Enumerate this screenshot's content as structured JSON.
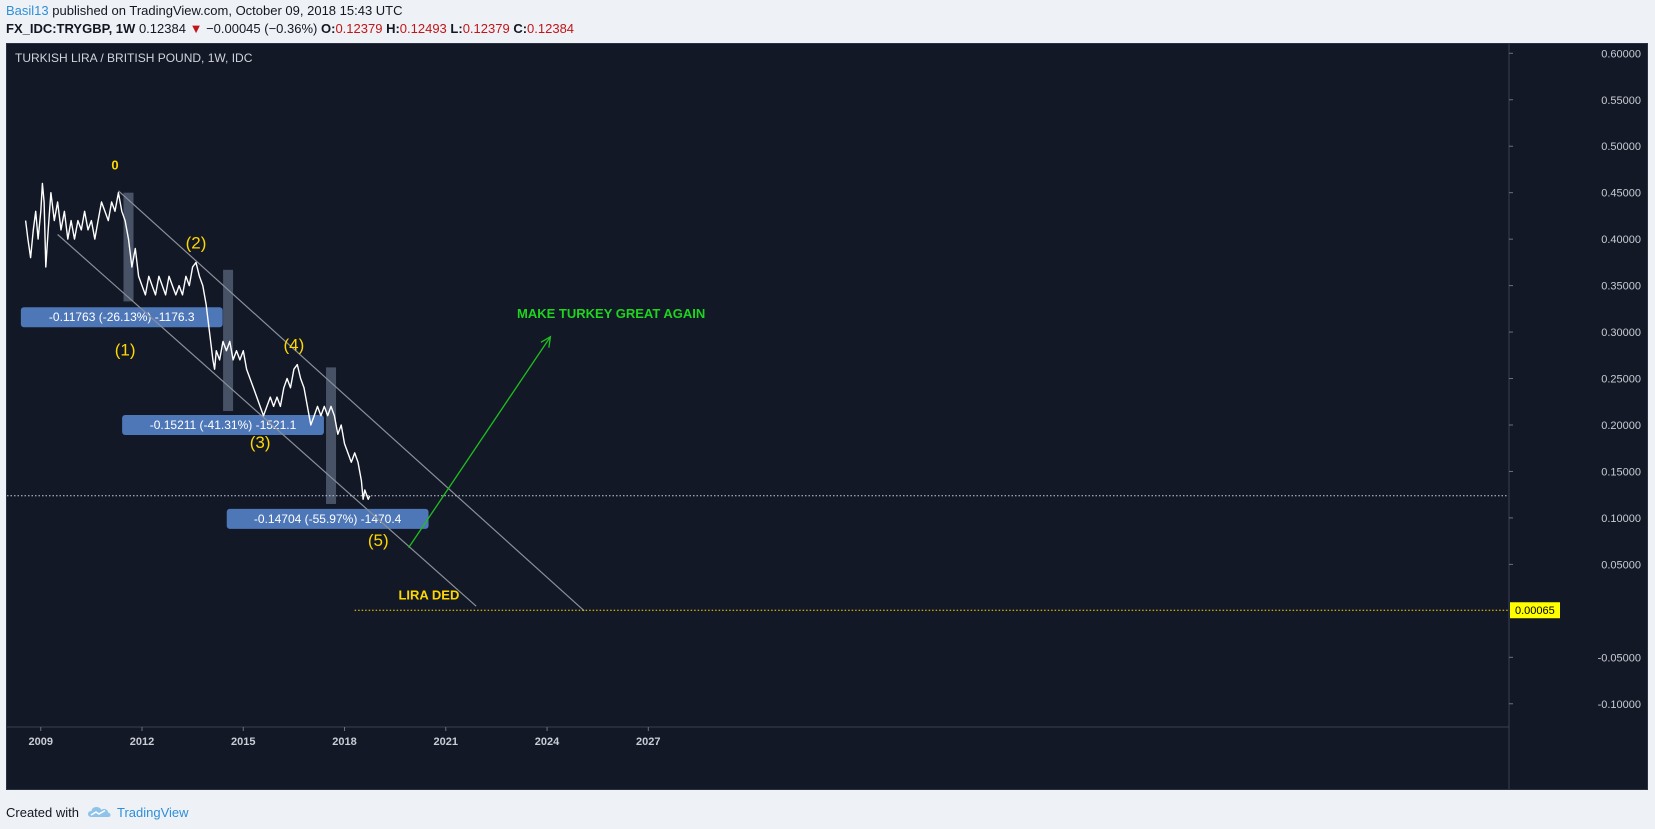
{
  "header": {
    "author": "Basil13",
    "published": " published on TradingView.com, October 09, 2018 15:43 UTC",
    "symbol": "FX_IDC:TRYGBP",
    "interval": ", 1W",
    "last": "0.12384",
    "down_arrow": "▼",
    "change": "−0.00045 (−0.36%)",
    "o_label": "O:",
    "o_value": "0.12379",
    "h_label": "H:",
    "h_value": "0.12493",
    "l_label": "L:",
    "l_value": "0.12379",
    "c_label": "C:",
    "c_value": "0.12384"
  },
  "footer": {
    "created_with": "Created with",
    "tradingview": "TradingView",
    "logo_icon": "tradingview-cloud-icon"
  },
  "chart_data": {
    "type": "line",
    "title": "TURKISH LIRA / BRITISH POUND, 1W, IDC",
    "xlabel": "",
    "ylabel": "",
    "x_ticks": [
      "2009",
      "2012",
      "2015",
      "2018",
      "2021",
      "2024",
      "2027"
    ],
    "y_ticks": [
      "0.60000",
      "0.55000",
      "0.50000",
      "0.45000",
      "0.40000",
      "0.35000",
      "0.30000",
      "0.25000",
      "0.20000",
      "0.15000",
      "0.10000",
      "0.05000",
      "-0.05000",
      "-0.10000"
    ],
    "ylim": [
      -0.125,
      0.61
    ],
    "xlim": [
      2008.0,
      2052.5
    ],
    "grid": false,
    "series": [
      {
        "color": "#ffffff",
        "points": [
          [
            2008.55,
            0.42
          ],
          [
            2008.62,
            0.4
          ],
          [
            2008.7,
            0.38
          ],
          [
            2008.78,
            0.41
          ],
          [
            2008.85,
            0.43
          ],
          [
            2008.92,
            0.4
          ],
          [
            2009.0,
            0.43
          ],
          [
            2009.05,
            0.46
          ],
          [
            2009.1,
            0.44
          ],
          [
            2009.15,
            0.37
          ],
          [
            2009.22,
            0.41
          ],
          [
            2009.3,
            0.45
          ],
          [
            2009.4,
            0.42
          ],
          [
            2009.5,
            0.44
          ],
          [
            2009.6,
            0.41
          ],
          [
            2009.7,
            0.43
          ],
          [
            2009.8,
            0.4
          ],
          [
            2009.9,
            0.42
          ],
          [
            2010.0,
            0.4
          ],
          [
            2010.1,
            0.42
          ],
          [
            2010.2,
            0.41
          ],
          [
            2010.3,
            0.43
          ],
          [
            2010.4,
            0.41
          ],
          [
            2010.5,
            0.42
          ],
          [
            2010.6,
            0.4
          ],
          [
            2010.7,
            0.42
          ],
          [
            2010.8,
            0.44
          ],
          [
            2010.9,
            0.43
          ],
          [
            2011.0,
            0.42
          ],
          [
            2011.1,
            0.44
          ],
          [
            2011.2,
            0.43
          ],
          [
            2011.3,
            0.45
          ],
          [
            2011.4,
            0.43
          ],
          [
            2011.5,
            0.42
          ],
          [
            2011.6,
            0.4
          ],
          [
            2011.7,
            0.37
          ],
          [
            2011.8,
            0.39
          ],
          [
            2011.9,
            0.36
          ],
          [
            2012.0,
            0.35
          ],
          [
            2012.1,
            0.34
          ],
          [
            2012.2,
            0.36
          ],
          [
            2012.3,
            0.35
          ],
          [
            2012.4,
            0.34
          ],
          [
            2012.5,
            0.36
          ],
          [
            2012.6,
            0.35
          ],
          [
            2012.7,
            0.34
          ],
          [
            2012.8,
            0.36
          ],
          [
            2012.9,
            0.35
          ],
          [
            2013.0,
            0.34
          ],
          [
            2013.1,
            0.35
          ],
          [
            2013.2,
            0.34
          ],
          [
            2013.3,
            0.36
          ],
          [
            2013.4,
            0.35
          ],
          [
            2013.5,
            0.37
          ],
          [
            2013.6,
            0.375
          ],
          [
            2013.7,
            0.36
          ],
          [
            2013.8,
            0.35
          ],
          [
            2013.9,
            0.33
          ],
          [
            2014.0,
            0.3
          ],
          [
            2014.1,
            0.27
          ],
          [
            2014.15,
            0.26
          ],
          [
            2014.2,
            0.28
          ],
          [
            2014.3,
            0.27
          ],
          [
            2014.4,
            0.29
          ],
          [
            2014.5,
            0.28
          ],
          [
            2014.6,
            0.29
          ],
          [
            2014.7,
            0.27
          ],
          [
            2014.8,
            0.28
          ],
          [
            2014.9,
            0.27
          ],
          [
            2015.0,
            0.28
          ],
          [
            2015.1,
            0.26
          ],
          [
            2015.2,
            0.25
          ],
          [
            2015.3,
            0.24
          ],
          [
            2015.4,
            0.23
          ],
          [
            2015.5,
            0.22
          ],
          [
            2015.6,
            0.21
          ],
          [
            2015.7,
            0.22
          ],
          [
            2015.8,
            0.23
          ],
          [
            2015.9,
            0.22
          ],
          [
            2016.0,
            0.23
          ],
          [
            2016.1,
            0.22
          ],
          [
            2016.2,
            0.24
          ],
          [
            2016.3,
            0.25
          ],
          [
            2016.4,
            0.24
          ],
          [
            2016.5,
            0.26
          ],
          [
            2016.6,
            0.265
          ],
          [
            2016.7,
            0.25
          ],
          [
            2016.8,
            0.24
          ],
          [
            2016.9,
            0.22
          ],
          [
            2017.0,
            0.2
          ],
          [
            2017.1,
            0.21
          ],
          [
            2017.2,
            0.22
          ],
          [
            2017.3,
            0.21
          ],
          [
            2017.4,
            0.22
          ],
          [
            2017.5,
            0.21
          ],
          [
            2017.6,
            0.22
          ],
          [
            2017.7,
            0.21
          ],
          [
            2017.8,
            0.19
          ],
          [
            2017.9,
            0.2
          ],
          [
            2018.0,
            0.18
          ],
          [
            2018.1,
            0.17
          ],
          [
            2018.2,
            0.16
          ],
          [
            2018.3,
            0.17
          ],
          [
            2018.4,
            0.16
          ],
          [
            2018.5,
            0.14
          ],
          [
            2018.55,
            0.12
          ],
          [
            2018.6,
            0.13
          ],
          [
            2018.7,
            0.12
          ],
          [
            2018.75,
            0.12384
          ]
        ]
      }
    ],
    "annotations": [
      {
        "kind": "wave",
        "text": "0",
        "x": 2011.2,
        "y": 0.475,
        "color": "#ffd700"
      },
      {
        "kind": "wave",
        "text": "(1)",
        "x": 2011.5,
        "y": 0.275,
        "color": "#ffd700"
      },
      {
        "kind": "wave",
        "text": "(2)",
        "x": 2013.6,
        "y": 0.39,
        "color": "#ffd700"
      },
      {
        "kind": "wave",
        "text": "(3)",
        "x": 2015.5,
        "y": 0.175,
        "color": "#ffd700"
      },
      {
        "kind": "wave",
        "text": "(4)",
        "x": 2016.5,
        "y": 0.28,
        "color": "#ffd700"
      },
      {
        "kind": "wave",
        "text": "(5)",
        "x": 2019.0,
        "y": 0.07,
        "color": "#ffd700"
      },
      {
        "kind": "measure",
        "x": 2011.6,
        "from": 0.45,
        "to": 0.333,
        "label": "-0.11763 (-26.13%) -1176.3",
        "lx": 2011.4,
        "ly": 0.316
      },
      {
        "kind": "measure",
        "x": 2014.55,
        "from": 0.367,
        "to": 0.215,
        "label": "-0.15211 (-41.31%) -1521.1",
        "lx": 2014.4,
        "ly": 0.2
      },
      {
        "kind": "measure",
        "x": 2017.6,
        "from": 0.262,
        "to": 0.115,
        "label": "-0.14704 (-55.97%) -1470.4",
        "lx": 2017.5,
        "ly": 0.099
      },
      {
        "kind": "channel",
        "color": "#8a8f99",
        "x1": 2011.3,
        "y1": 0.452,
        "x2": 2025.1,
        "y2": 0.0
      },
      {
        "kind": "channel",
        "color": "#8a8f99",
        "x1": 2009.5,
        "y1": 0.405,
        "x2": 2021.9,
        "y2": 0.005
      },
      {
        "kind": "hline",
        "y": 0.12384,
        "color": "#c8ccd4",
        "style": "dotted",
        "x_from": 2008.0
      },
      {
        "kind": "hline",
        "y": 0.00065,
        "color": "#ffd700",
        "style": "dotted",
        "x_from": 2018.3
      },
      {
        "kind": "text",
        "text": "LIRA DED",
        "x": 2020.5,
        "y": 0.012,
        "color": "#ffd700"
      },
      {
        "kind": "arrow",
        "color": "#1fbf1f",
        "x1": 2019.9,
        "y1": 0.068,
        "x2": 2024.1,
        "y2": 0.295
      },
      {
        "kind": "text",
        "text": "MAKE TURKEY GREAT AGAIN",
        "x": 2025.9,
        "y": 0.315,
        "color": "#1fd41f"
      }
    ],
    "price_tags": [
      {
        "text": "0.00065",
        "y": 0.00065,
        "bg": "#ffff00",
        "fg": "#000000"
      }
    ]
  }
}
